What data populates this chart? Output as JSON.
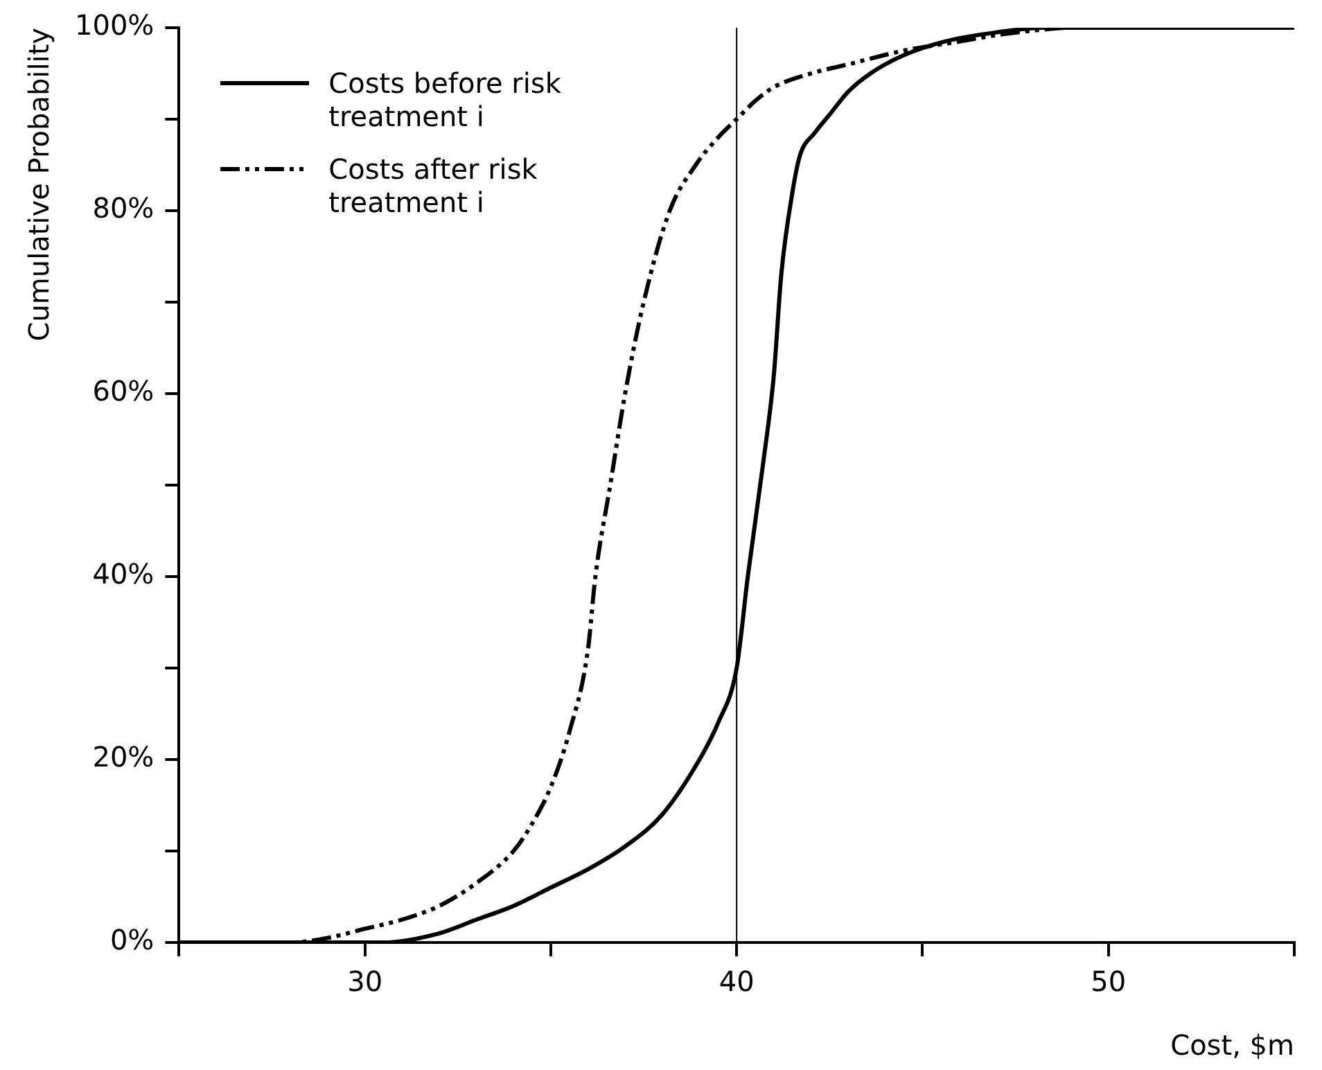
{
  "chart_data": {
    "type": "line",
    "xlabel": "Cost, $m",
    "ylabel": "Cumulative Probability",
    "xlim": [
      25,
      55
    ],
    "ylim": [
      0,
      100
    ],
    "xticks": [
      {
        "value": 25,
        "label": null
      },
      30,
      {
        "value": 35,
        "label": null
      },
      40,
      {
        "value": 45,
        "label": null
      },
      50,
      {
        "value": 55,
        "label": null
      }
    ],
    "yticks": [
      {
        "value": 0,
        "label": "0%"
      },
      {
        "value": 10,
        "label": null
      },
      {
        "value": 20,
        "label": "20%"
      },
      {
        "value": 30,
        "label": null
      },
      {
        "value": 40,
        "label": "40%"
      },
      {
        "value": 50,
        "label": null
      },
      {
        "value": 60,
        "label": "60%"
      },
      {
        "value": 70,
        "label": null
      },
      {
        "value": 80,
        "label": "80%"
      },
      {
        "value": 90,
        "label": null
      },
      {
        "value": 100,
        "label": "100%"
      }
    ],
    "series": [
      {
        "name": "Costs before risk treatment i",
        "color": "#000000",
        "line_style": "solid",
        "x": [
          25,
          30.5,
          32,
          33,
          34,
          35,
          36,
          37,
          38,
          39,
          39.5,
          40,
          40.3,
          40.7,
          41,
          41.2,
          41.5,
          41.7,
          42.1,
          42.5,
          43,
          43.6,
          44.5,
          45.6,
          47,
          48.3,
          50,
          55
        ],
        "values": [
          0,
          0,
          1,
          2.5,
          4,
          6,
          8,
          10.5,
          14,
          20,
          24,
          30,
          40,
          52,
          62,
          73,
          82,
          86,
          88.5,
          90.5,
          93,
          95,
          97,
          98.5,
          99.5,
          100,
          100,
          100
        ]
      },
      {
        "name": "Costs after risk treatment i",
        "color": "#000000",
        "line_style": "dashed",
        "x": [
          25,
          28,
          29,
          30,
          31,
          32,
          33,
          34,
          34.5,
          35,
          35.5,
          36,
          36.2,
          36.6,
          37,
          37.5,
          38.2,
          38.9,
          39.5,
          40,
          40.5,
          41,
          42,
          43,
          44.5,
          46,
          47,
          48,
          49,
          55
        ],
        "values": [
          0,
          0,
          0.5,
          1.5,
          2.5,
          4,
          6.5,
          10,
          13,
          17,
          23,
          32,
          40,
          50,
          60,
          70,
          80,
          85,
          88,
          90,
          92,
          93.5,
          95,
          96,
          97.5,
          98.5,
          99.2,
          99.7,
          100,
          100
        ]
      }
    ],
    "ref_lines": [
      {
        "axis": "x",
        "value": 40,
        "color": "#000000"
      }
    ],
    "legend": "top left",
    "grid": false,
    "marker": "none"
  }
}
